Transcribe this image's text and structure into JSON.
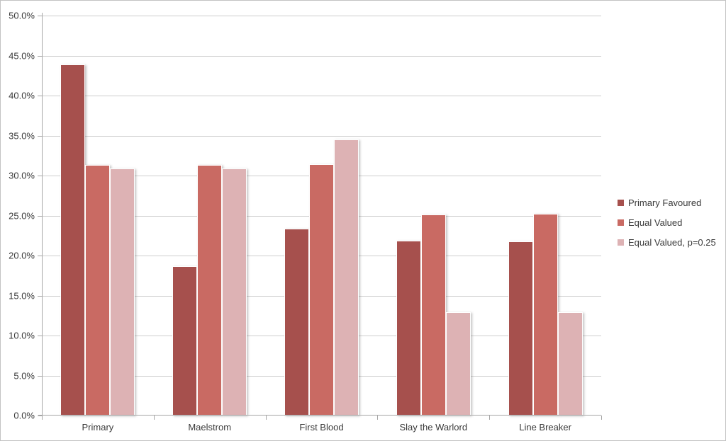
{
  "chart_data": {
    "type": "bar",
    "title": "",
    "categories": [
      "Primary",
      "Maelstrom",
      "First Blood",
      "Slay the Warlord",
      "Line Breaker"
    ],
    "series": [
      {
        "name": "Primary Favoured",
        "color": "#A6504D",
        "values": [
          43.9,
          18.7,
          23.4,
          21.9,
          21.8
        ]
      },
      {
        "name": "Equal Valued",
        "color": "#C96A63",
        "values": [
          31.3,
          31.3,
          31.4,
          25.1,
          25.2
        ]
      },
      {
        "name": "Equal Valued, p=0.25",
        "color": "#DDB2B4",
        "values": [
          30.9,
          30.9,
          34.5,
          12.9,
          12.9
        ]
      }
    ],
    "ylim": [
      0,
      50
    ],
    "ytick_step": 5,
    "ytick_labels": [
      "0.0%",
      "5.0%",
      "10.0%",
      "15.0%",
      "20.0%",
      "25.0%",
      "30.0%",
      "35.0%",
      "40.0%",
      "45.0%",
      "50.0%"
    ],
    "grid": true,
    "legend_position": "right"
  },
  "colors": {
    "background": "#FFFFFF",
    "image_border": "#C3C3C3",
    "gridline": "#CDCDCD",
    "axis": "#A6A6A6",
    "text": "#3A3A3A",
    "bar_edge": "#FFFFFF"
  }
}
